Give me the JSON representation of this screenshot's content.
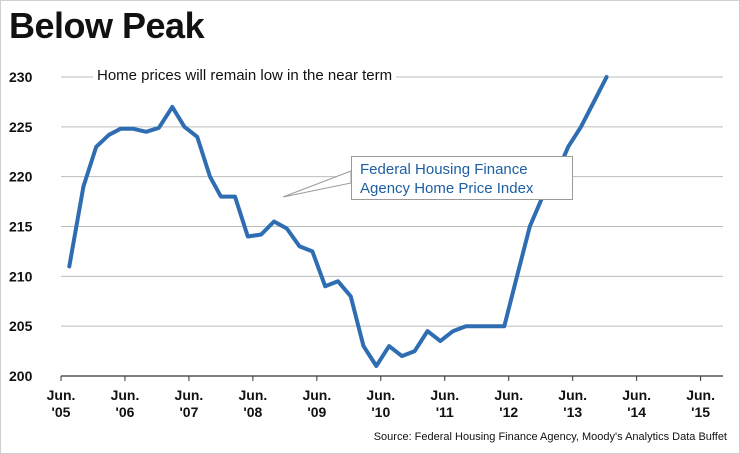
{
  "header": {
    "title": "Below Peak",
    "subtitle": "Home prices will remain low in the near term"
  },
  "callout": {
    "line1": "Federal Housing Finance",
    "line2": "Agency Home Price Index"
  },
  "footer": {
    "source": "Source: Federal Housing Finance Agency, Moody's Analytics Data Buffet"
  },
  "colors": {
    "line": "#2f6db3",
    "grid": "#bdbdbd",
    "axis": "#333333"
  },
  "chart_data": {
    "type": "line",
    "title": "Below Peak",
    "subtitle": "Home prices will remain low in the near term",
    "xlabel": "",
    "ylabel": "",
    "ylim": [
      200,
      230
    ],
    "yticks": [
      200,
      205,
      210,
      215,
      220,
      225,
      230
    ],
    "xlim": [
      2005.5,
      2015.85
    ],
    "xticks": [
      {
        "x": 2005.5,
        "line1": "Jun.",
        "line2": "'05"
      },
      {
        "x": 2006.5,
        "line1": "Jun.",
        "line2": "'06"
      },
      {
        "x": 2007.5,
        "line1": "Jun.",
        "line2": "'07"
      },
      {
        "x": 2008.5,
        "line1": "Jun.",
        "line2": "'08"
      },
      {
        "x": 2009.5,
        "line1": "Jun.",
        "line2": "'09"
      },
      {
        "x": 2010.5,
        "line1": "Jun.",
        "line2": "'10"
      },
      {
        "x": 2011.5,
        "line1": "Jun.",
        "line2": "'11"
      },
      {
        "x": 2012.5,
        "line1": "Jun.",
        "line2": "'12"
      },
      {
        "x": 2013.5,
        "line1": "Jun.",
        "line2": "'13"
      },
      {
        "x": 2014.5,
        "line1": "Jun.",
        "line2": "'14"
      },
      {
        "x": 2015.5,
        "line1": "Jun.",
        "line2": "'15"
      }
    ],
    "grid": true,
    "series": [
      {
        "name": "Federal Housing Finance Agency Home Price Index",
        "points": [
          [
            2005.63,
            211.0
          ],
          [
            2005.85,
            219.0
          ],
          [
            2006.05,
            223.0
          ],
          [
            2006.25,
            224.2
          ],
          [
            2006.43,
            224.8
          ],
          [
            2006.63,
            224.8
          ],
          [
            2006.83,
            224.5
          ],
          [
            2007.03,
            224.9
          ],
          [
            2007.24,
            227.0
          ],
          [
            2007.43,
            225.0
          ],
          [
            2007.63,
            224.0
          ],
          [
            2007.83,
            220.0
          ],
          [
            2008.0,
            218.0
          ],
          [
            2008.22,
            218.0
          ],
          [
            2008.42,
            214.0
          ],
          [
            2008.63,
            214.2
          ],
          [
            2008.83,
            215.5
          ],
          [
            2009.03,
            214.8
          ],
          [
            2009.23,
            213.0
          ],
          [
            2009.43,
            212.5
          ],
          [
            2009.63,
            209.0
          ],
          [
            2009.83,
            209.5
          ],
          [
            2010.03,
            208.0
          ],
          [
            2010.23,
            203.0
          ],
          [
            2010.43,
            201.0
          ],
          [
            2010.63,
            203.0
          ],
          [
            2010.83,
            202.0
          ],
          [
            2011.03,
            202.5
          ],
          [
            2011.23,
            204.5
          ],
          [
            2011.43,
            203.5
          ],
          [
            2011.63,
            204.5
          ],
          [
            2011.83,
            205.0
          ],
          [
            2012.03,
            205.0
          ],
          [
            2012.23,
            205.0
          ],
          [
            2012.43,
            205.0
          ],
          [
            2012.63,
            210.0
          ],
          [
            2012.83,
            215.0
          ],
          [
            2013.03,
            218.0
          ],
          [
            2013.23,
            220.0
          ],
          [
            2013.43,
            223.0
          ],
          [
            2013.63,
            225.0
          ],
          [
            2013.83,
            227.5
          ],
          [
            2014.03,
            230.0
          ]
        ]
      }
    ]
  }
}
